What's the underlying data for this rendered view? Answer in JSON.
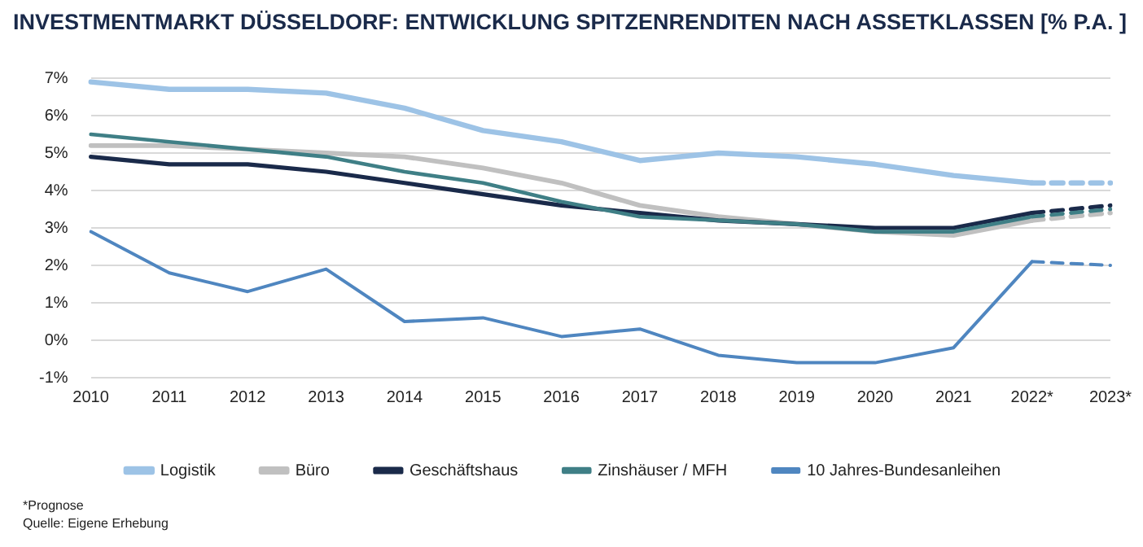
{
  "chart_data": {
    "type": "line",
    "title": "INVESTMENTMARKT DÜSSELDORF: ENTWICKLUNG SPITZENRENDITEN NACH ASSETKLASSEN [% P.A. ]",
    "categories": [
      "2010",
      "2011",
      "2012",
      "2013",
      "2014",
      "2015",
      "2016",
      "2017",
      "2018",
      "2019",
      "2020",
      "2021",
      "2022*",
      "2023*"
    ],
    "series": [
      {
        "name": "Logistik",
        "color": "#9dc3e6",
        "line_style": "solid",
        "values": [
          6.9,
          6.7,
          6.7,
          6.6,
          6.2,
          5.6,
          5.3,
          4.8,
          5.0,
          4.9,
          4.7,
          4.4,
          4.2,
          null
        ]
      },
      {
        "name": "Büro",
        "color": "#c0c0c0",
        "line_style": "solid",
        "values": [
          5.2,
          5.2,
          5.1,
          5.0,
          4.9,
          4.6,
          4.2,
          3.6,
          3.3,
          3.1,
          2.9,
          2.8,
          3.2,
          null
        ]
      },
      {
        "name": "Geschäftshaus",
        "color": "#1a2a4a",
        "line_style": "solid",
        "values": [
          4.9,
          4.7,
          4.7,
          4.5,
          4.2,
          3.9,
          3.6,
          3.4,
          3.2,
          3.1,
          3.0,
          3.0,
          3.4,
          null
        ]
      },
      {
        "name": "Zinshäuser / MFH",
        "color": "#3f7f86",
        "line_style": "solid",
        "values": [
          5.5,
          5.3,
          5.1,
          4.9,
          4.5,
          4.2,
          3.7,
          3.3,
          3.2,
          3.1,
          2.9,
          2.9,
          3.3,
          null
        ]
      },
      {
        "name": "10 Jahres-Bundesanleihen",
        "color": "#4f86c0",
        "line_style": "solid",
        "values": [
          2.9,
          1.8,
          1.3,
          1.9,
          0.5,
          0.6,
          0.1,
          0.3,
          -0.4,
          -0.6,
          -0.6,
          -0.2,
          2.1,
          null
        ]
      },
      {
        "color": "#9dc3e6",
        "line_style": "dashed",
        "values": [
          null,
          null,
          null,
          null,
          null,
          null,
          null,
          null,
          null,
          null,
          null,
          null,
          4.2,
          4.2
        ]
      },
      {
        "color": "#c0c0c0",
        "line_style": "dashed",
        "values": [
          null,
          null,
          null,
          null,
          null,
          null,
          null,
          null,
          null,
          null,
          null,
          null,
          3.2,
          3.4
        ]
      },
      {
        "color": "#1a2a4a",
        "line_style": "dashed",
        "values": [
          null,
          null,
          null,
          null,
          null,
          null,
          null,
          null,
          null,
          null,
          null,
          null,
          3.4,
          3.6
        ]
      },
      {
        "color": "#3f7f86",
        "line_style": "dashed",
        "values": [
          null,
          null,
          null,
          null,
          null,
          null,
          null,
          null,
          null,
          null,
          null,
          null,
          3.3,
          3.5
        ]
      },
      {
        "color": "#4f86c0",
        "line_style": "dashed",
        "values": [
          null,
          null,
          null,
          null,
          null,
          null,
          null,
          null,
          null,
          null,
          null,
          null,
          2.1,
          2.0
        ]
      }
    ],
    "ylim": [
      -1,
      7
    ],
    "yticks": [
      {
        "value": -1,
        "label": "-1%"
      },
      {
        "value": 0,
        "label": "0%"
      },
      {
        "value": 1,
        "label": "1%"
      },
      {
        "value": 2,
        "label": "2%"
      },
      {
        "value": 3,
        "label": "3%"
      },
      {
        "value": 4,
        "label": "4%"
      },
      {
        "value": 5,
        "label": "5%"
      },
      {
        "value": 6,
        "label": "6%"
      },
      {
        "value": 7,
        "label": "7%"
      }
    ],
    "grid": "y",
    "legend": "bottom",
    "marker": "none",
    "annotations": [
      "*Prognose",
      "Quelle: Eigene Erhebung"
    ]
  }
}
